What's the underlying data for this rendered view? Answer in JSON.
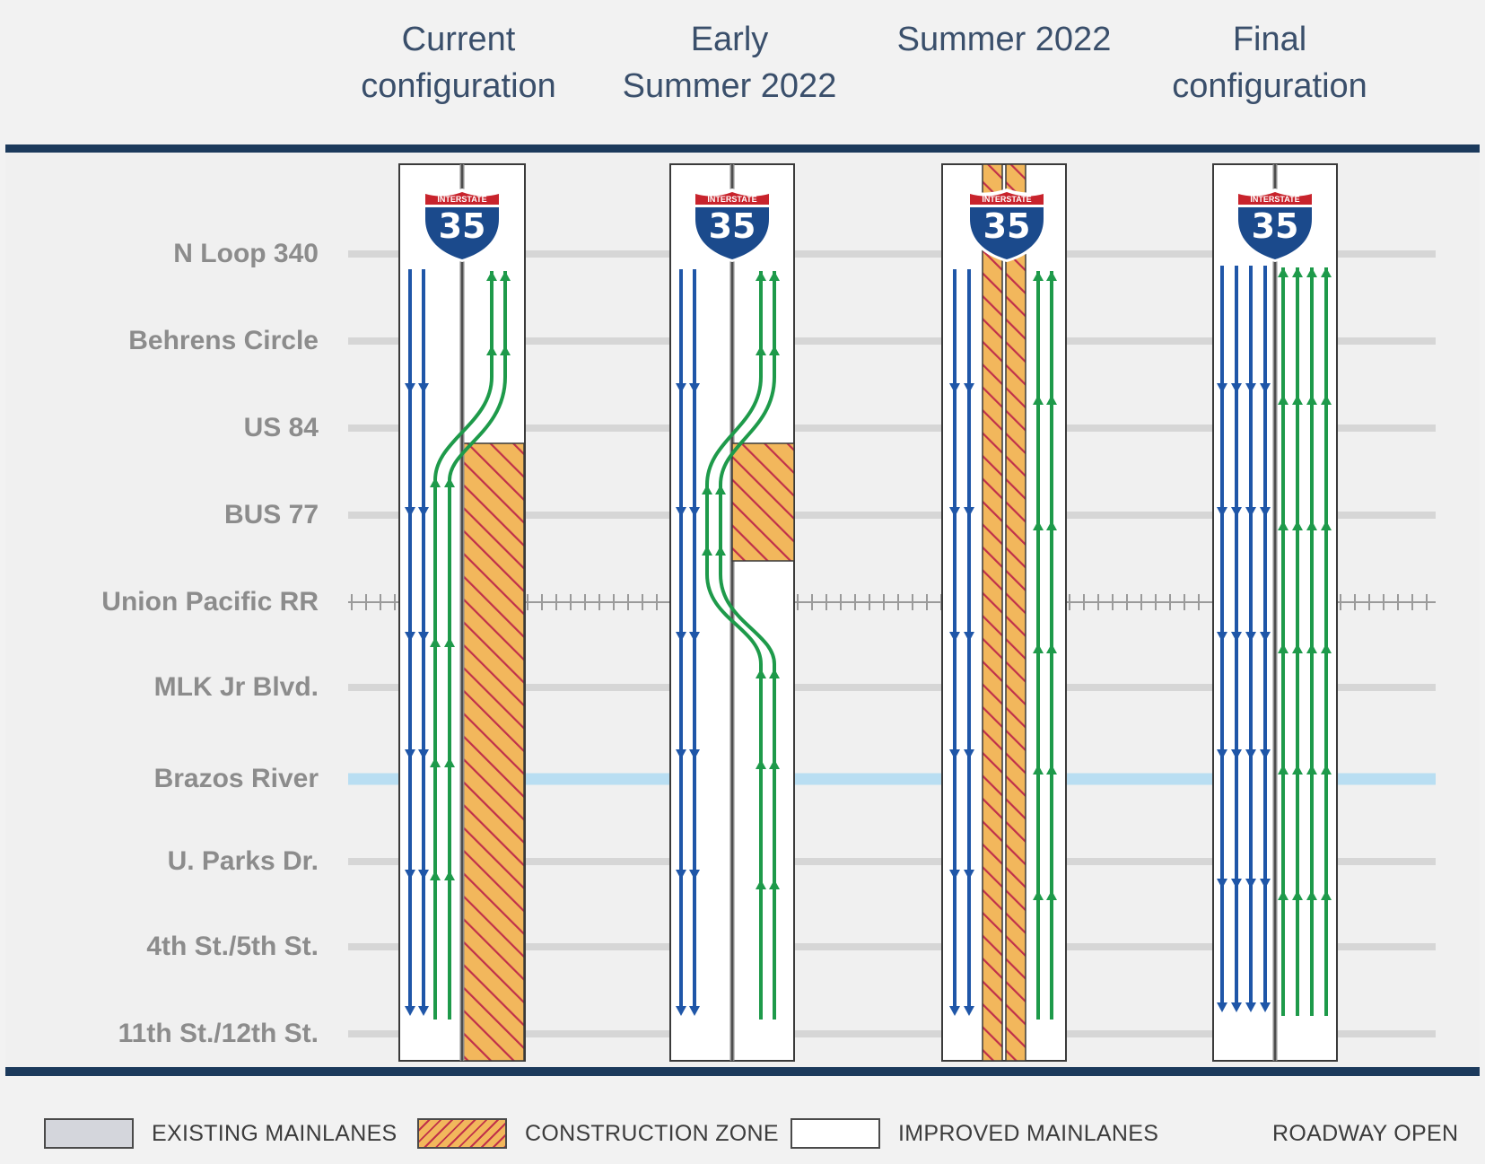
{
  "columns": [
    {
      "id": "current",
      "title_line1": "Current",
      "title_line2": "configuration"
    },
    {
      "id": "early",
      "title_line1": "Early",
      "title_line2": "Summer 2022"
    },
    {
      "id": "summer",
      "title_line1": "",
      "title_line2": "Summer 2022"
    },
    {
      "id": "final",
      "title_line1": "Final",
      "title_line2": "configuration"
    }
  ],
  "streets": [
    {
      "name": "N Loop 340",
      "type": "road"
    },
    {
      "name": "Behrens Circle",
      "type": "road"
    },
    {
      "name": "US 84",
      "type": "road"
    },
    {
      "name": "BUS 77",
      "type": "road"
    },
    {
      "name": "Union Pacific RR",
      "type": "rail"
    },
    {
      "name": "MLK Jr Blvd.",
      "type": "road"
    },
    {
      "name": "Brazos River",
      "type": "river"
    },
    {
      "name": "U. Parks Dr.",
      "type": "road"
    },
    {
      "name": "4th St./5th St.",
      "type": "road"
    },
    {
      "name": "11th St./12th St.",
      "type": "road"
    }
  ],
  "shield": {
    "top_text": "INTERSTATE",
    "number": "35"
  },
  "legend": [
    {
      "id": "existing",
      "label": "EXISTING MAINLANES"
    },
    {
      "id": "construction",
      "label": "CONSTRUCTION ZONE"
    },
    {
      "id": "improved",
      "label": "IMPROVED MAINLANES"
    },
    {
      "id": "open",
      "label": "ROADWAY OPEN"
    }
  ],
  "colors": {
    "southbound": "#1f56a8",
    "northbound": "#1e9a4a",
    "construction_fill": "#f2b75c",
    "construction_hatch": "#c0304a",
    "river": "#b9def2",
    "road": "#d6d6d6",
    "frame": "#1c3a5c",
    "header_text": "#3a4f6b",
    "label_text": "#8c8c8c",
    "shield_blue": "#1b4a8c",
    "shield_red": "#c8232c"
  }
}
